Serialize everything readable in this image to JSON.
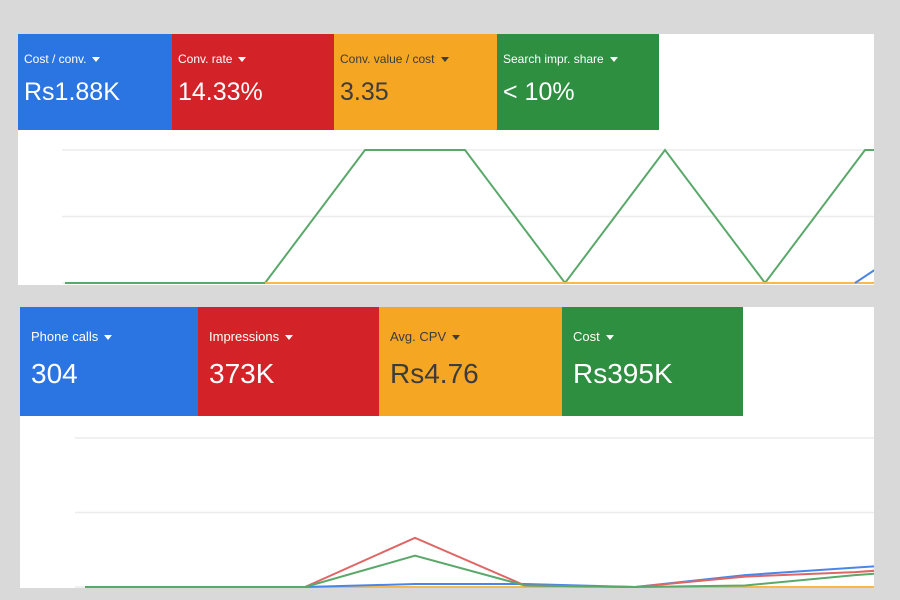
{
  "colors": {
    "blue": "#2a75e2",
    "red": "#d32328",
    "orange": "#f5a623",
    "green": "#2e8f40",
    "grid": "#ececec",
    "line_blue": "#4a86e8",
    "line_red": "#e06666",
    "line_green": "#5aa86a",
    "line_orange": "#f6b94f"
  },
  "top": {
    "cards": [
      {
        "label": "Cost / conv.",
        "value": "Rs1.88K",
        "color": "blue"
      },
      {
        "label": "Conv. rate",
        "value": "14.33%",
        "color": "red"
      },
      {
        "label": "Conv. value / cost",
        "value": "3.35",
        "color": "orange"
      },
      {
        "label": "Search impr. share",
        "value": "< 10%",
        "color": "green"
      }
    ]
  },
  "bottom": {
    "cards": [
      {
        "label": "Phone calls",
        "value": "304",
        "color": "blue"
      },
      {
        "label": "Impressions",
        "value": "373K",
        "color": "red"
      },
      {
        "label": "Avg. CPV",
        "value": "Rs4.76",
        "color": "orange"
      },
      {
        "label": "Cost",
        "value": "Rs395K",
        "color": "green"
      }
    ]
  },
  "chart_data": [
    {
      "type": "line",
      "grid": true,
      "ylim": [
        0,
        100
      ],
      "xlim": [
        0,
        8.1
      ],
      "series": [
        {
          "color": "line_green",
          "x": [
            0,
            1,
            2,
            3,
            4,
            5,
            6,
            7,
            8,
            8.1
          ],
          "values": [
            0,
            0,
            0,
            100,
            100,
            0,
            100,
            0,
            100,
            100
          ]
        },
        {
          "color": "line_orange",
          "x": [
            2,
            3,
            4,
            5,
            6,
            7,
            8,
            8.1
          ],
          "values": [
            0,
            0,
            0,
            0,
            0,
            0,
            0,
            0
          ]
        },
        {
          "color": "line_blue",
          "x": [
            7.9,
            8.1
          ],
          "values": [
            0,
            10
          ]
        }
      ]
    },
    {
      "type": "line",
      "grid": true,
      "ylim": [
        0,
        100
      ],
      "xlim": [
        0,
        7.2
      ],
      "series": [
        {
          "color": "line_orange",
          "x": [
            2,
            3,
            4,
            5,
            6,
            7,
            7.2
          ],
          "values": [
            0,
            0,
            0,
            0,
            0,
            0,
            0
          ]
        },
        {
          "color": "line_blue",
          "x": [
            2,
            3,
            4,
            5,
            6,
            7,
            7.2
          ],
          "values": [
            0,
            2,
            2,
            0,
            8,
            13,
            14
          ]
        },
        {
          "color": "line_red",
          "x": [
            0,
            1,
            2,
            3,
            4,
            5,
            6,
            7,
            7.2
          ],
          "values": [
            0,
            0,
            0,
            33,
            1,
            0,
            7,
            10,
            11
          ]
        },
        {
          "color": "line_green",
          "x": [
            0,
            1,
            2,
            3,
            4,
            5,
            6,
            7,
            7.2
          ],
          "values": [
            0,
            0,
            0,
            21,
            1,
            0,
            1,
            8,
            9
          ]
        }
      ]
    }
  ]
}
